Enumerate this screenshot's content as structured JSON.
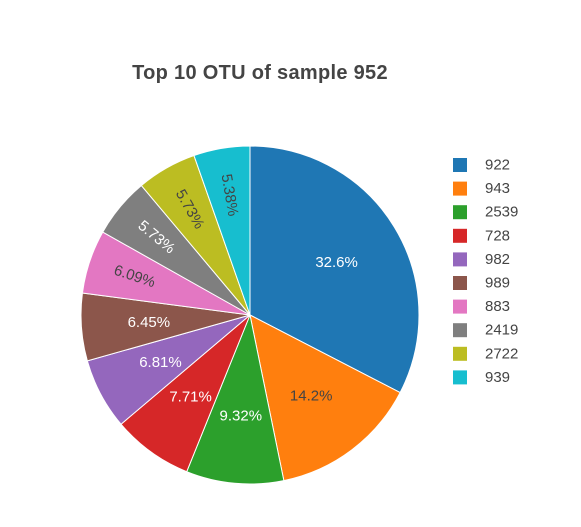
{
  "chart_data": {
    "type": "pie",
    "title": "Top 10 OTU of sample 952",
    "labels": [
      "922",
      "943",
      "2539",
      "728",
      "982",
      "989",
      "883",
      "2419",
      "2722",
      "939"
    ],
    "values": [
      32.6,
      14.2,
      9.32,
      7.71,
      6.81,
      6.45,
      6.09,
      5.73,
      5.73,
      5.38
    ],
    "value_labels": [
      "32.6%",
      "14.2%",
      "9.32%",
      "7.71%",
      "6.81%",
      "6.45%",
      "6.09%",
      "5.73%",
      "5.73%",
      "5.38%"
    ],
    "colors": [
      "#1f77b4",
      "#ff7f0e",
      "#2ca02c",
      "#d62728",
      "#9467bd",
      "#8c564b",
      "#e377c2",
      "#7f7f7f",
      "#bcbd22",
      "#17becf"
    ],
    "label_colors": [
      "#ffffff",
      "#444444",
      "#ffffff",
      "#ffffff",
      "#ffffff",
      "#ffffff",
      "#444444",
      "#ffffff",
      "#444444",
      "#444444"
    ],
    "direction": "clockwise",
    "legend_placement": "right"
  }
}
